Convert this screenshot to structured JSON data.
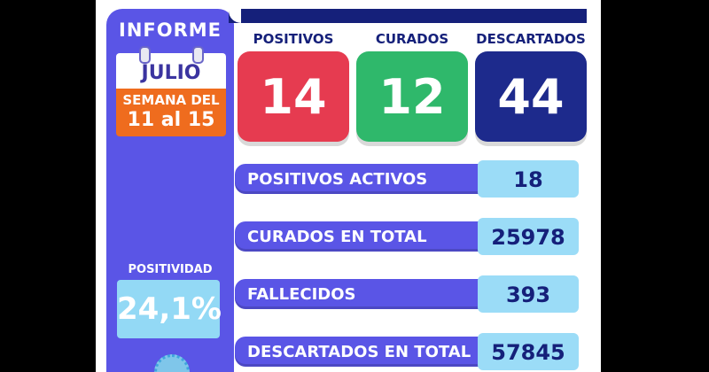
{
  "panel": {
    "title": "INFORME",
    "month": "JULIO",
    "week_line1": "SEMANA DEL",
    "week_line2": "11 al 15",
    "positivity_label": "POSITIVIDAD",
    "positivity_value": "24,1%"
  },
  "stats": [
    {
      "label": "POSITIVOS",
      "value": "14",
      "color": "#e63b50"
    },
    {
      "label": "CURADOS",
      "value": "12",
      "color": "#2fb86b"
    },
    {
      "label": "DESCARTADOS",
      "value": "44",
      "color": "#1d2a8c"
    }
  ],
  "rows": [
    {
      "label": "POSITIVOS ACTIVOS",
      "value": "18"
    },
    {
      "label": "CURADOS EN TOTAL",
      "value": "25978"
    },
    {
      "label": "FALLECIDOS",
      "value": "393"
    },
    {
      "label": "DESCARTADOS EN TOTAL",
      "value": "57845"
    }
  ],
  "colors": {
    "panel": "#5a55e6",
    "navy": "#15207a",
    "orange": "#ef6c1e",
    "light_blue": "#9bdcf7"
  }
}
